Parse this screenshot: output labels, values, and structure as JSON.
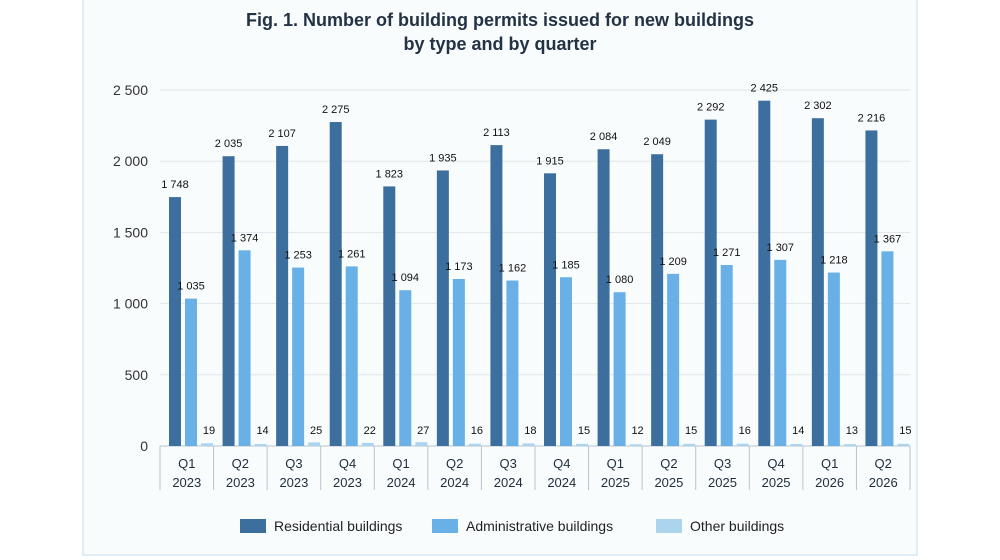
{
  "chart_data": {
    "type": "bar",
    "title_line1": "Fig.  1. Number of building permits issued for new buildings",
    "title_line2": "by type and by quarter",
    "categories": [
      [
        "Q1",
        "2023"
      ],
      [
        "Q2",
        "2023"
      ],
      [
        "Q3",
        "2023"
      ],
      [
        "Q4",
        "2023"
      ],
      [
        "Q1",
        "2024"
      ],
      [
        "Q2",
        "2024"
      ],
      [
        "Q3",
        "2024"
      ],
      [
        "Q4",
        "2024"
      ],
      [
        "Q1",
        "2025"
      ],
      [
        "Q2",
        "2025"
      ],
      [
        "Q3",
        "2025"
      ],
      [
        "Q4",
        "2025"
      ],
      [
        "Q1",
        "2026"
      ],
      [
        "Q2",
        "2026"
      ]
    ],
    "series": [
      {
        "name": "Residential buildings",
        "color": "#3d6f9e",
        "values": [
          1748,
          2035,
          2107,
          2275,
          1823,
          1935,
          2113,
          1915,
          2084,
          2049,
          2292,
          2425,
          2302,
          2216
        ]
      },
      {
        "name": "Administrative buildings",
        "color": "#68b0e6",
        "values": [
          1035,
          1374,
          1253,
          1261,
          1094,
          1173,
          1162,
          1185,
          1080,
          1209,
          1271,
          1307,
          1218,
          1367
        ]
      },
      {
        "name": "Other buildings",
        "color": "#acd4ef",
        "values": [
          19,
          14,
          25,
          22,
          27,
          16,
          18,
          15,
          12,
          15,
          16,
          14,
          13,
          15
        ]
      }
    ],
    "ylim": [
      0,
      2500
    ],
    "yticks": [
      0,
      500,
      1000,
      1500,
      2000,
      2500
    ],
    "ytick_labels": [
      "0",
      "500",
      "1 000",
      "1 500",
      "2 000",
      "2 500"
    ],
    "grid": true,
    "legend_position": "bottom"
  }
}
